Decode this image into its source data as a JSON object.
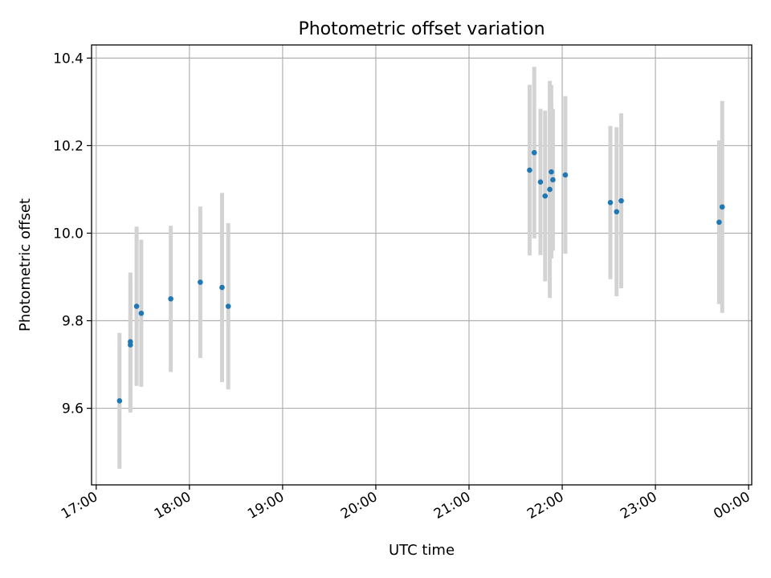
{
  "chart_data": {
    "type": "scatter",
    "title": "Photometric offset variation",
    "xlabel": "UTC time",
    "ylabel": "Photometric offset",
    "x_tick_labels": [
      "17:00",
      "18:00",
      "19:00",
      "20:00",
      "21:00",
      "22:00",
      "23:00",
      "00:00"
    ],
    "x_ticks": [
      "17:00",
      "18:00",
      "19:00",
      "20:00",
      "21:00",
      "22:00",
      "23:00",
      "24:00"
    ],
    "y_ticks": [
      9.6,
      9.8,
      10.0,
      10.2,
      10.4
    ],
    "y_tick_labels": [
      "9.6",
      "9.8",
      "10.0",
      "10.2",
      "10.4"
    ],
    "xlim": [
      "16:57",
      "24:02"
    ],
    "ylim": [
      9.425,
      10.43
    ],
    "grid": true,
    "marker_color": "#1f77b4",
    "errorbar_color": "#d3d3d3",
    "points": [
      {
        "x": "17:15",
        "y": 9.617,
        "yerr": 0.155
      },
      {
        "x": "17:22",
        "y": 9.752,
        "yerr": 0.158
      },
      {
        "x": "17:22",
        "y": 9.745,
        "yerr": 0.155
      },
      {
        "x": "17:26",
        "y": 9.833,
        "yerr": 0.182
      },
      {
        "x": "17:29",
        "y": 9.817,
        "yerr": 0.168
      },
      {
        "x": "17:48",
        "y": 9.85,
        "yerr": 0.167
      },
      {
        "x": "18:07",
        "y": 9.888,
        "yerr": 0.173
      },
      {
        "x": "18:21",
        "y": 9.876,
        "yerr": 0.216
      },
      {
        "x": "18:25",
        "y": 9.833,
        "yerr": 0.19
      },
      {
        "x": "21:39",
        "y": 10.144,
        "yerr": 0.195
      },
      {
        "x": "21:42",
        "y": 10.184,
        "yerr": 0.196
      },
      {
        "x": "21:46",
        "y": 10.117,
        "yerr": 0.167
      },
      {
        "x": "21:49",
        "y": 10.085,
        "yerr": 0.195
      },
      {
        "x": "21:52",
        "y": 10.1,
        "yerr": 0.248
      },
      {
        "x": "21:53",
        "y": 10.14,
        "yerr": 0.198
      },
      {
        "x": "21:54",
        "y": 10.122,
        "yerr": 0.162
      },
      {
        "x": "22:02",
        "y": 10.133,
        "yerr": 0.18
      },
      {
        "x": "22:31",
        "y": 10.07,
        "yerr": 0.175
      },
      {
        "x": "22:35",
        "y": 10.049,
        "yerr": 0.193
      },
      {
        "x": "22:38",
        "y": 10.074,
        "yerr": 0.2
      },
      {
        "x": "23:41",
        "y": 10.025,
        "yerr": 0.187
      },
      {
        "x": "23:43",
        "y": 10.06,
        "yerr": 0.242
      }
    ]
  }
}
